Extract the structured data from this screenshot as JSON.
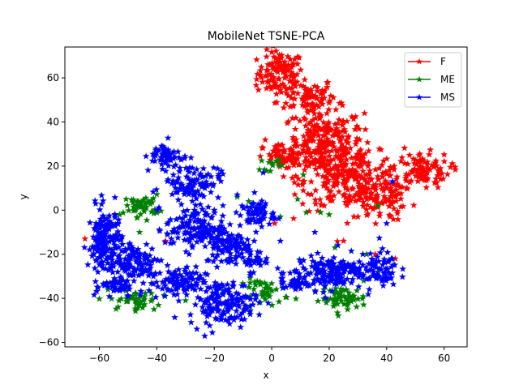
{
  "chart_data": {
    "type": "scatter",
    "title": "MobileNet TSNE-PCA",
    "xlabel": "x",
    "ylabel": "y",
    "xlim": [
      -72,
      68
    ],
    "ylim": [
      -62,
      74
    ],
    "xticks": [
      -60,
      -40,
      -20,
      0,
      20,
      40,
      60
    ],
    "yticks": [
      -60,
      -40,
      -20,
      0,
      20,
      40,
      60
    ],
    "grid": false,
    "legend": "top-right",
    "marker": "star",
    "series": [
      {
        "name": "F",
        "color": "#ff0000",
        "clusters": [
          {
            "cx": 3,
            "cy": 62,
            "sx": 4,
            "sy": 5,
            "n": 110
          },
          {
            "cx": 12,
            "cy": 52,
            "sx": 5,
            "sy": 4,
            "n": 70
          },
          {
            "cx": 18,
            "cy": 30,
            "sx": 7,
            "sy": 8,
            "n": 260
          },
          {
            "cx": 28,
            "cy": 14,
            "sx": 9,
            "sy": 7,
            "n": 230
          },
          {
            "cx": 52,
            "cy": 18,
            "sx": 5,
            "sy": 4,
            "n": 100
          },
          {
            "cx": 38,
            "cy": 5,
            "sx": 4,
            "sy": 5,
            "n": 70
          },
          {
            "cx": 5,
            "cy": 24,
            "sx": 4,
            "sy": 3,
            "n": 60
          }
        ],
        "points": [
          [
            -65,
            -13
          ],
          [
            -37,
            -14
          ],
          [
            1,
            -6
          ],
          [
            30,
            -3
          ],
          [
            43,
            -22
          ],
          [
            36,
            -20
          ],
          [
            25,
            -14
          ]
        ]
      },
      {
        "name": "ME",
        "color": "#008000",
        "clusters": [
          {
            "cx": -45,
            "cy": 2,
            "sx": 3,
            "sy": 2.5,
            "n": 50
          },
          {
            "cx": -48,
            "cy": -41,
            "sx": 4,
            "sy": 2,
            "n": 45
          },
          {
            "cx": 25,
            "cy": -40,
            "sx": 4,
            "sy": 2.5,
            "n": 55
          },
          {
            "cx": -2,
            "cy": -37,
            "sx": 4,
            "sy": 3,
            "n": 40
          },
          {
            "cx": 0,
            "cy": 21,
            "sx": 2,
            "sy": 1.5,
            "n": 12
          }
        ],
        "points": [
          [
            -57,
            -36
          ],
          [
            -53,
            -2
          ],
          [
            -46,
            -10
          ],
          [
            -41,
            -45
          ],
          [
            -30,
            -41
          ],
          [
            -12,
            6
          ],
          [
            -8,
            4
          ],
          [
            3,
            -3
          ],
          [
            11,
            16
          ],
          [
            12,
            -1
          ],
          [
            15,
            -26
          ],
          [
            17,
            -1
          ],
          [
            20,
            -2
          ],
          [
            22,
            -17
          ],
          [
            33,
            -20
          ],
          [
            35,
            -25
          ],
          [
            37,
            -28
          ],
          [
            37,
            2
          ],
          [
            19,
            -42
          ],
          [
            9,
            5
          ],
          [
            4,
            -35
          ],
          [
            13,
            -34
          ],
          [
            32,
            -32
          ],
          [
            28,
            -26
          ]
        ]
      },
      {
        "name": "MS",
        "color": "#0000ff",
        "clusters": [
          {
            "cx": -58,
            "cy": -15,
            "sx": 3,
            "sy": 8,
            "n": 170
          },
          {
            "cx": -53,
            "cy": -35,
            "sx": 3,
            "sy": 3,
            "n": 40
          },
          {
            "cx": -37,
            "cy": 25,
            "sx": 3,
            "sy": 3,
            "n": 50
          },
          {
            "cx": -28,
            "cy": 13,
            "sx": 5,
            "sy": 4,
            "n": 100
          },
          {
            "cx": -33,
            "cy": -33,
            "sx": 5,
            "sy": 3.5,
            "n": 90
          },
          {
            "cx": -27,
            "cy": -8,
            "sx": 5,
            "sy": 5,
            "n": 130
          },
          {
            "cx": -47,
            "cy": -24,
            "sx": 5,
            "sy": 5,
            "n": 110
          },
          {
            "cx": -15,
            "cy": -15,
            "sx": 4,
            "sy": 5,
            "n": 90
          },
          {
            "cx": -17,
            "cy": -42,
            "sx": 6,
            "sy": 5,
            "n": 150
          },
          {
            "cx": -5,
            "cy": -2,
            "sx": 3,
            "sy": 3,
            "n": 60
          },
          {
            "cx": -8,
            "cy": -22,
            "sx": 3,
            "sy": 3,
            "n": 40
          },
          {
            "cx": 20,
            "cy": -28,
            "sx": 6,
            "sy": 4,
            "n": 140
          },
          {
            "cx": 36,
            "cy": -27,
            "sx": 4,
            "sy": 4,
            "n": 80
          },
          {
            "cx": 8,
            "cy": -32,
            "sx": 3,
            "sy": 3,
            "n": 40
          }
        ],
        "points": [
          [
            42,
            13
          ],
          [
            -3,
            17
          ],
          [
            -12,
            7
          ],
          [
            15,
            -10
          ],
          [
            23,
            -16
          ],
          [
            40,
            -6
          ],
          [
            -44,
            -20
          ],
          [
            -20,
            0
          ],
          [
            3,
            -14
          ],
          [
            -6,
            8
          ]
        ]
      }
    ]
  }
}
